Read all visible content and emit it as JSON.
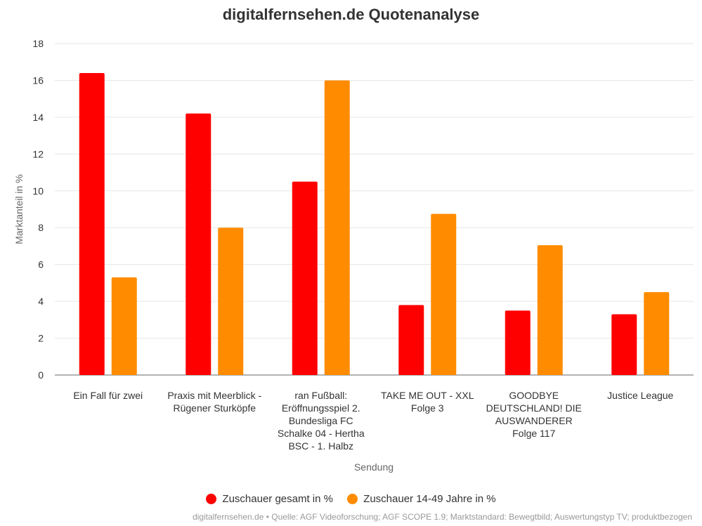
{
  "chart_data": {
    "type": "bar",
    "title": "digitalfernsehen.de Quotenanalyse",
    "xlabel": "Sendung",
    "ylabel": "Marktanteil in %",
    "ylim": [
      0,
      18
    ],
    "yticks": [
      "0",
      "2",
      "4",
      "6",
      "8",
      "10",
      "12",
      "14",
      "16",
      "18"
    ],
    "grid": true,
    "legend_position": "bottom",
    "categories": [
      [
        "Ein Fall für zwei"
      ],
      [
        "Praxis mit Meerblick -",
        "Rügener Sturköpfe"
      ],
      [
        "ran Fußball:",
        "Eröffnungsspiel 2.",
        "Bundesliga FC",
        "Schalke 04 - Hertha",
        "BSC - 1. Halbz"
      ],
      [
        "TAKE ME OUT - XXL",
        "Folge 3"
      ],
      [
        "GOODBYE",
        "DEUTSCHLAND! DIE",
        "AUSWANDERER",
        "Folge 117"
      ],
      [
        "Justice League"
      ]
    ],
    "series": [
      {
        "name": "Zuschauer gesamt in %",
        "color": "#ff0000",
        "values": [
          16.4,
          14.2,
          10.5,
          3.8,
          3.5,
          3.3
        ]
      },
      {
        "name": "Zuschauer 14-49 Jahre in %",
        "color": "#ff8c00",
        "values": [
          5.3,
          8.0,
          16.0,
          8.75,
          7.05,
          4.5
        ]
      }
    ]
  },
  "source": "digitalfernsehen.de • Quelle: AGF Videoforschung; AGF SCOPE 1.9; Marktstandard: Bewegtbild; Auswertungstyp TV; produktbezogen"
}
